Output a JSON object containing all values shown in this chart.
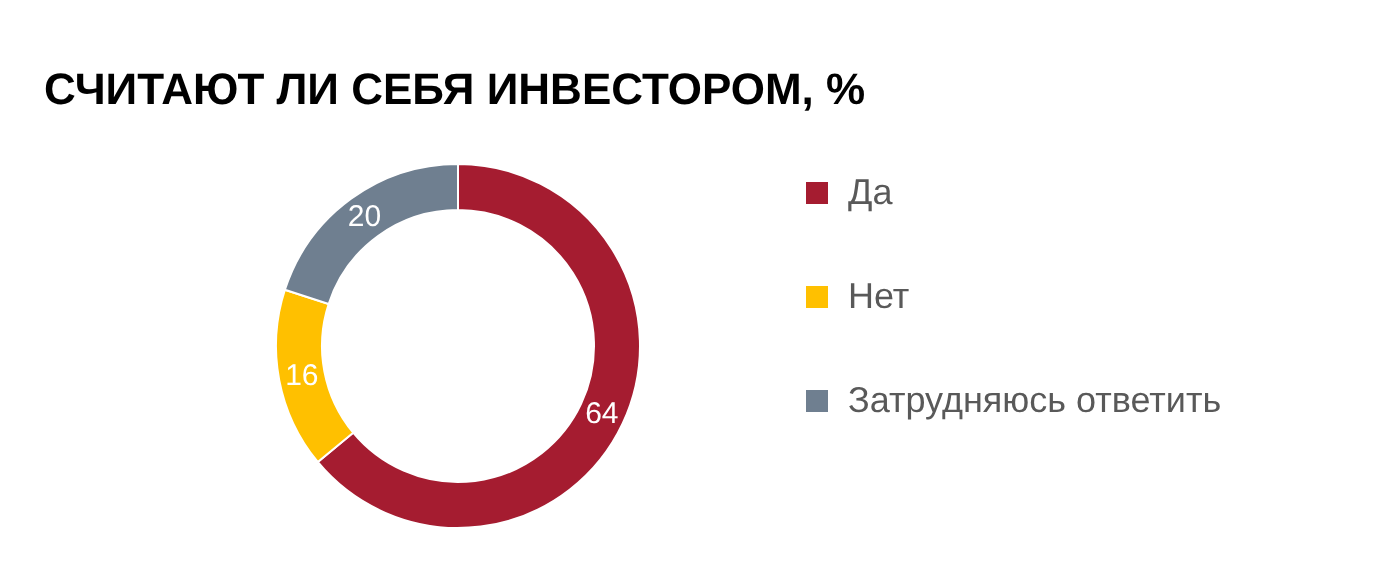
{
  "chart_data": {
    "type": "donut",
    "title": "СЧИТАЮТ ЛИ СЕБЯ ИНВЕСТОРОМ, %",
    "categories": [
      "Да",
      "Нет",
      "Затрудняюсь ответить"
    ],
    "values": [
      64,
      16,
      20
    ],
    "colors": [
      "#a51c30",
      "#ffc000",
      "#6f7f90"
    ],
    "data_labels": true,
    "legend": "right"
  }
}
